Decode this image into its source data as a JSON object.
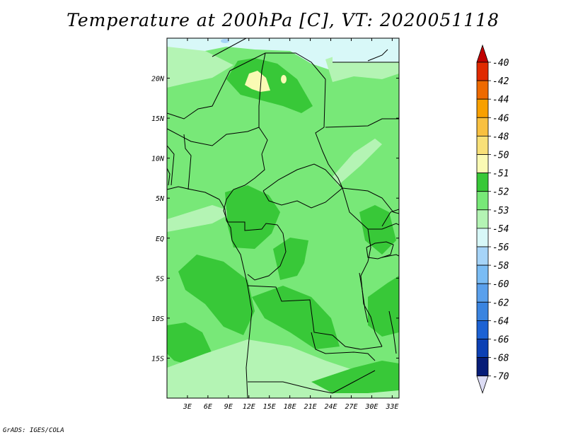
{
  "title": "Temperature at 200hPa [C], VT: 2020051118",
  "credit": "GrADS: IGES/COLA",
  "map": {
    "lat_range": [
      -20,
      25
    ],
    "lon_range": [
      0,
      34
    ],
    "lat_ticks": [
      {
        "value": 20,
        "label": "20N"
      },
      {
        "value": 15,
        "label": "15N"
      },
      {
        "value": 10,
        "label": "10N"
      },
      {
        "value": 5,
        "label": "5N"
      },
      {
        "value": 0,
        "label": "EQ"
      },
      {
        "value": -5,
        "label": "5S"
      },
      {
        "value": -10,
        "label": "10S"
      },
      {
        "value": -15,
        "label": "15S"
      }
    ],
    "lon_ticks": [
      {
        "value": 3,
        "label": "3E"
      },
      {
        "value": 6,
        "label": "6E"
      },
      {
        "value": 9,
        "label": "9E"
      },
      {
        "value": 12,
        "label": "12E"
      },
      {
        "value": 15,
        "label": "15E"
      },
      {
        "value": 18,
        "label": "18E"
      },
      {
        "value": 21,
        "label": "21E"
      },
      {
        "value": 24,
        "label": "24E"
      },
      {
        "value": 27,
        "label": "27E"
      },
      {
        "value": 30,
        "label": "30E"
      },
      {
        "value": 33,
        "label": "33E"
      }
    ]
  },
  "colorbar": {
    "levels": [
      {
        "label": "-40",
        "color": "#c00000"
      },
      {
        "label": "-42",
        "color": "#e02a00"
      },
      {
        "label": "-44",
        "color": "#ee6a00"
      },
      {
        "label": "-46",
        "color": "#f8a000"
      },
      {
        "label": "-48",
        "color": "#f8c040"
      },
      {
        "label": "-50",
        "color": "#f8e078"
      },
      {
        "label": "-51",
        "color": "#fafab4"
      },
      {
        "label": "-52",
        "color": "#38c838"
      },
      {
        "label": "-53",
        "color": "#78e878"
      },
      {
        "label": "-54",
        "color": "#b4f4b4"
      },
      {
        "label": "-56",
        "color": "#d8f8f8"
      },
      {
        "label": "-58",
        "color": "#a6d4f8"
      },
      {
        "label": "-60",
        "color": "#7abcf4"
      },
      {
        "label": "-62",
        "color": "#5aa0ec"
      },
      {
        "label": "-64",
        "color": "#3a84e0"
      },
      {
        "label": "-66",
        "color": "#1c62d4"
      },
      {
        "label": "-68",
        "color": "#0c40b4"
      },
      {
        "label": "-70",
        "color": "#061c78"
      }
    ],
    "top_color": "#c00000",
    "bottom_color": "#dcdcf4"
  },
  "colors": {
    "light_green": "#78e878",
    "dark_green": "#38c838",
    "pale_green": "#b4f4b4",
    "very_pale": "#d8f8f8",
    "yellow": "#fafab4",
    "light_blue": "#a6d4f8"
  }
}
